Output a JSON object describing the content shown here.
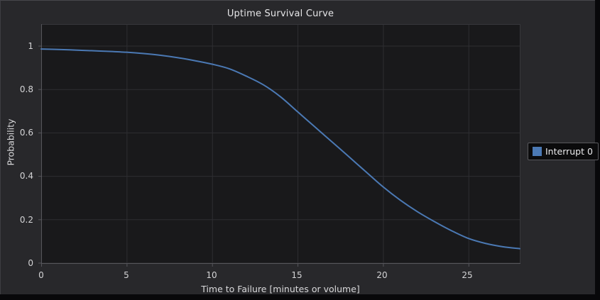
{
  "window": {
    "title": "Uptime Survival Curve"
  },
  "colors": {
    "page_bg": "#08080a",
    "figure_bg": "#28282b",
    "plot_bg": "#19191b",
    "grid": "#2e2e32",
    "spine": "#56565b",
    "spine_dim": "#36363a",
    "text": "#d9d9db",
    "series_blue": "#4b79b4",
    "legend_bg": "#0b0b0c",
    "legend_border": "#58585c"
  },
  "chart_data": {
    "type": "line",
    "title": "Uptime Survival Curve",
    "xlabel": "Time to Failure [minutes or volume]",
    "ylabel": "Probability",
    "xlim": [
      0,
      28
    ],
    "ylim": [
      0,
      1.1
    ],
    "grid": true,
    "legend_position": "right-outside",
    "xticks": [
      0,
      5,
      10,
      15,
      20,
      25
    ],
    "yticks": [
      0,
      0.2,
      0.4,
      0.6,
      0.8,
      1
    ],
    "xtick_labels": [
      "0",
      "5",
      "10",
      "15",
      "20",
      "25"
    ],
    "ytick_labels": [
      "1",
      "0.8",
      "0.6",
      "0.4",
      "0.2",
      "0"
    ],
    "series": [
      {
        "name": "Interrupt 0",
        "color": "#4b79b4",
        "x": [
          0,
          1,
          2,
          3,
          4,
          5,
          6,
          7,
          8,
          9,
          10,
          11,
          12,
          13,
          14,
          15,
          16,
          17,
          18,
          19,
          20,
          21,
          22,
          23,
          24,
          25,
          26,
          27,
          28
        ],
        "y": [
          0.985,
          0.983,
          0.98,
          0.977,
          0.974,
          0.97,
          0.964,
          0.956,
          0.945,
          0.931,
          0.915,
          0.894,
          0.86,
          0.82,
          0.765,
          0.696,
          0.627,
          0.558,
          0.489,
          0.419,
          0.35,
          0.289,
          0.236,
          0.19,
          0.148,
          0.112,
          0.089,
          0.074,
          0.065
        ]
      }
    ]
  }
}
